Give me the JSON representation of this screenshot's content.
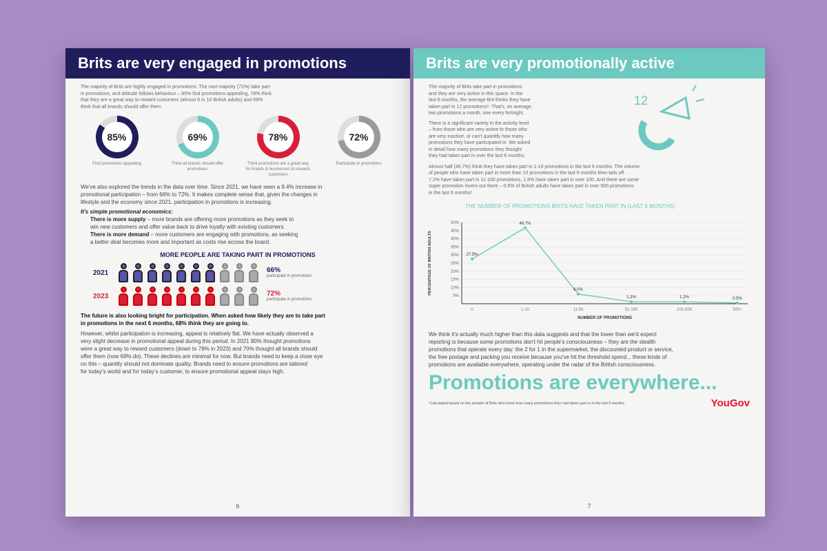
{
  "left_page": {
    "title": "Brits are very engaged in promotions",
    "intro": [
      "The majority of Brits are highly engaged in promotions. The vast majority (72%) take part",
      "in promotions, and attitude follows behaviour – 85% find promotions appealing, 78% think",
      "that they are a great way to reward customers (almost 8 in 10 British adults) and 69%",
      "think that all brands should offer them."
    ],
    "stats": [
      {
        "value": "85%",
        "caption": "Find promotions appealing",
        "color": "#1f1d5c",
        "fill": 0.85
      },
      {
        "value": "69%",
        "caption": "Think all brands should offer promotions",
        "color": "#6cc9bf",
        "fill": 0.69
      },
      {
        "value": "78%",
        "caption": "Think promotions are a great way for brands & businesses to rewards customers",
        "color": "#d81f3a",
        "fill": 0.78
      },
      {
        "value": "72%",
        "caption": "Participate in promotions",
        "color": "#9a9a9a",
        "fill": 0.72
      }
    ],
    "trends": [
      "We've also explored the trends in the data over time. Since 2021, we have seen a 9.4% increase in",
      "promotional participation – from 66% to 72%. It makes complete sense that, given the changes in",
      "lifestyle and the economy since 2021, participation in promotions is increasing."
    ],
    "economics_heading": "It's simple promotional economics:",
    "bullets": [
      {
        "bold": "There is more supply",
        "text": " – more brands are offering more promotions as they seek to",
        "text2": "win new customers and offer value back to drive loyalty with existing customers."
      },
      {
        "bold": "There is more demand",
        "text": " – more customers are engaging with promotions, as seeking",
        "text2": "a better deal becomes more and important as costs rise across the board."
      }
    ],
    "infographic": {
      "title": "MORE PEOPLE ARE TAKING PART IN PROMOTIONS",
      "rows": [
        {
          "year": "2021",
          "value": "66%",
          "label": "participate in promotions",
          "color": "#5a55a8",
          "fraction": 0.66
        },
        {
          "year": "2023",
          "value": "72%",
          "label": "participate in promotions",
          "color": "#d81f3a",
          "fraction": 0.72
        }
      ]
    },
    "future_bold": [
      "The future is also looking bright for participation. When asked how likely they are to take part",
      "in promotions in the next 6 months, 68% think they are going to."
    ],
    "closing": [
      "However, whilst participation is increasing, appeal is relatively flat. We have actually observed a",
      "very slight decrease in promotional appeal during this period. In 2021 80% thought promotions",
      "were a great way to reward customers (down to 78% in 2023) and 70% thought all brands should",
      "offer them (now 69% do). These declines are minimal for now. But brands need to keep a close eye",
      "on this – quantity should not dominate quality. Brands need to ensure promotions are tailored",
      "for today's world and for today's customer, to ensure promotional appeal stays high."
    ],
    "page_number": "6"
  },
  "right_page": {
    "title": "Brits are very promotionally active",
    "icon_number": "12",
    "intro": [
      "The majority of Brits take part in promotions",
      "and they are very active in this space. In the",
      "last 6 months, the average Brit thinks they have",
      "taken part in 12 promotions¹. That's, on average,",
      "two promotions a month, one every fortnight."
    ],
    "variety": [
      "There is a significant variety in the activity level",
      "– from those who are very active to those who",
      "are very inactive, or can't quantify how many",
      "promotions they have participated in. We asked",
      "in detail how many promotions they thought",
      "they had taken part in over the last 6 months."
    ],
    "almost_half": [
      "Almost half (46.7%) think they have taken part in 1-10 promotions in the last 6 months. The volume",
      "of people who have taken part in more than 10 promotions in the last 6 months then tails off.",
      "7.2% have taken part in 11-100 promotions, 1.8% have taken part in over 100. And there are some",
      "super promotion lovers out there – 0.5% of British adults have taken part in over 500 promotions",
      "in the last 6 months!"
    ],
    "after_chart": [
      "We think it's actually much higher than this data suggests and that the lower than we'd expect",
      "reporting is because some promotions don't hit people's consciousness – they are the stealth",
      "promotions that operate every day: the 2 for 1 in the supermarket, the discounted product or service,",
      "the free postage and packing you receive because you've hit the threshold spend... these kinds of",
      "promotions are available everywhere, operating under the radar of the British consciousness."
    ],
    "headline": "Promotions are everywhere...",
    "footnote": "¹Calculated based on the sample of Brits who knew how many promotions they had taken part in in the last 6 months",
    "brand": "YouGov",
    "page_number": "7"
  },
  "chart_data": {
    "type": "line",
    "title": "THE NUMBER OF PROMOTIONS BRITS HAVE TAKEN PART IN (LAST 6 MONTHS)",
    "xlabel": "NUMBER OF PROMOTIONS",
    "ylabel": "PERCENTAGE OF BRITISH ADULTS",
    "categories": [
      "0",
      "1-10",
      "11-50",
      "51-100",
      "101-500",
      "500+"
    ],
    "values": [
      27.5,
      46.7,
      6.0,
      1.2,
      1.2,
      0.5
    ],
    "data_labels": [
      "27.5%",
      "46.7%",
      "6.0%",
      "1.2%",
      "1.2%",
      "0.5%"
    ],
    "yticks": [
      "50%",
      "45%",
      "40%",
      "35%",
      "30%",
      "25%",
      "20%",
      "15%",
      "10%",
      "5%"
    ],
    "grid": true,
    "color": "#6cc9bf"
  },
  "colors": {
    "navy": "#1f1d5c",
    "teal": "#6cc9bf",
    "red": "#d81f3a",
    "background": "#a88cc4"
  }
}
